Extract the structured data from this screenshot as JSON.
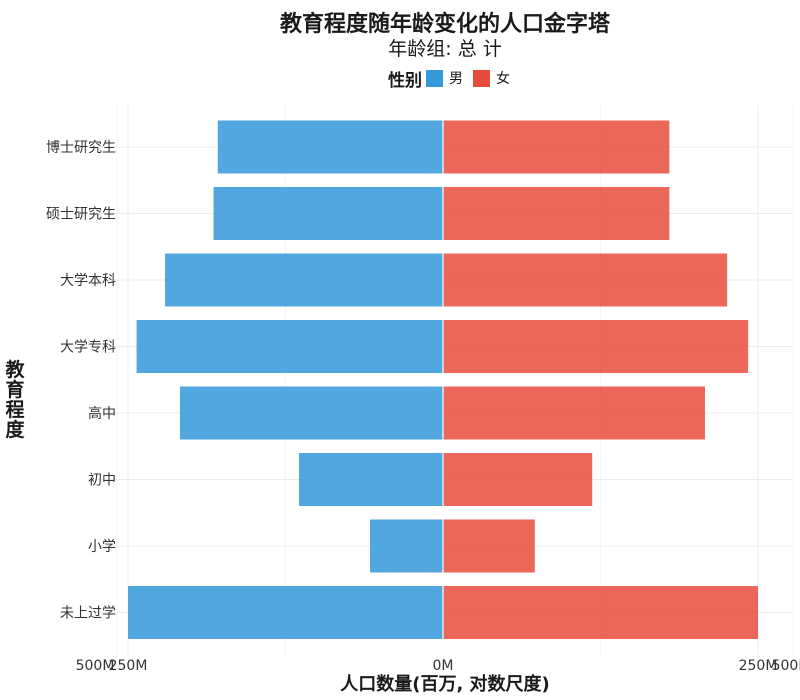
{
  "title": "教育程度随年龄变化的人口金字塔",
  "subtitle": "年龄组: 总 计",
  "legend": {
    "title": "性别",
    "items": [
      {
        "label": "男",
        "color": "#3498db"
      },
      {
        "label": "女",
        "color": "#e74c3c"
      }
    ]
  },
  "chart_data": {
    "type": "bar",
    "orientation": "horizontal",
    "layout": "population-pyramid",
    "title": "教育程度随年龄变化的人口金字塔",
    "subtitle": "年龄组: 总 计",
    "xlabel": "人口数量(百万, 对数尺度)",
    "ylabel": "教育程度",
    "categories": [
      "未上过学",
      "小学",
      "初中",
      "高中",
      "大学专科",
      "大学本科",
      "硕士研究生",
      "博士研究生"
    ],
    "x_scale": "log, mirrored",
    "x_ticks": [
      "500M",
      "250M",
      "0M",
      "250M",
      "500M"
    ],
    "grid": true,
    "legend_position": "top",
    "series": [
      {
        "name": "男",
        "color": "#3498db",
        "values": [
          250,
          2.6,
          11.5,
          100,
          215,
          130,
          55,
          51
        ]
      },
      {
        "name": "女",
        "color": "#e74c3c",
        "values": [
          250,
          4.0,
          12.7,
          98,
          210,
          145,
          52,
          52
        ]
      }
    ]
  }
}
